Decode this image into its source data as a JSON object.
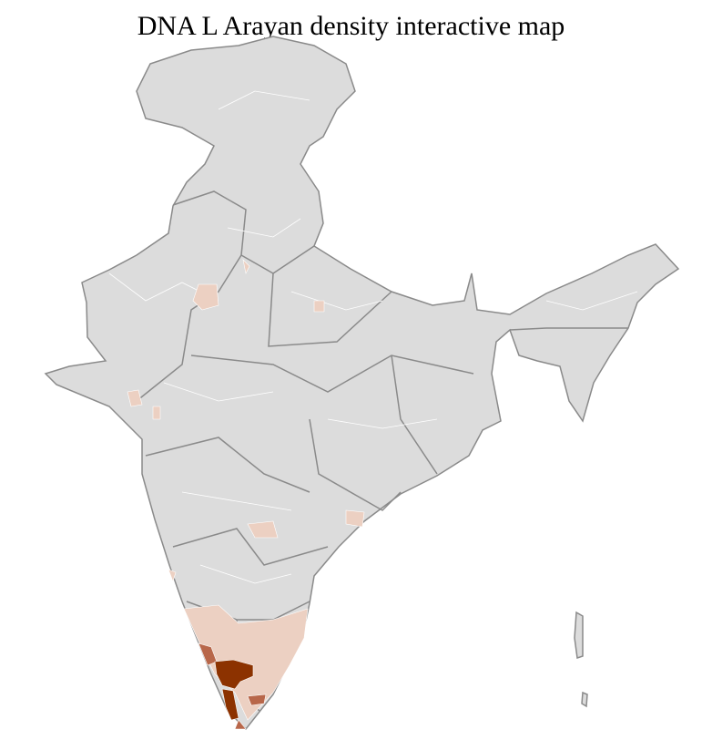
{
  "title": "DNA L Arayan density interactive map",
  "colors": {
    "base": "#dcdcdc",
    "border_state": "#8a8a8a",
    "border_district": "#ffffff",
    "low": "#ecd0c2",
    "medium": "#b8674a",
    "high": "#8c3200"
  }
}
